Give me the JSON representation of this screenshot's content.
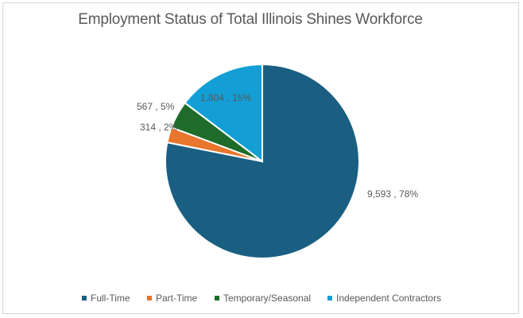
{
  "chart_data": {
    "type": "pie",
    "title": "Employment Status of Total Illinois Shines Workforce",
    "start_angle_deg": 0,
    "direction": "clockwise",
    "legend_position": "bottom",
    "slices": [
      {
        "label": "Full-Time",
        "value": 9593,
        "percent": 78,
        "data_label": "9,593 , 78%",
        "color": "#1a5f82"
      },
      {
        "label": "Part-Time",
        "value": 314,
        "percent": 2,
        "data_label": "314 , 2%",
        "color": "#e8762c"
      },
      {
        "label": "Temporary/Seasonal",
        "value": 567,
        "percent": 5,
        "data_label": "567 , 5%",
        "color": "#1e6b2a"
      },
      {
        "label": "Independent Contractors",
        "value": 1804,
        "percent": 15,
        "data_label": "1,804 , 15%",
        "color": "#139fd6"
      }
    ]
  }
}
